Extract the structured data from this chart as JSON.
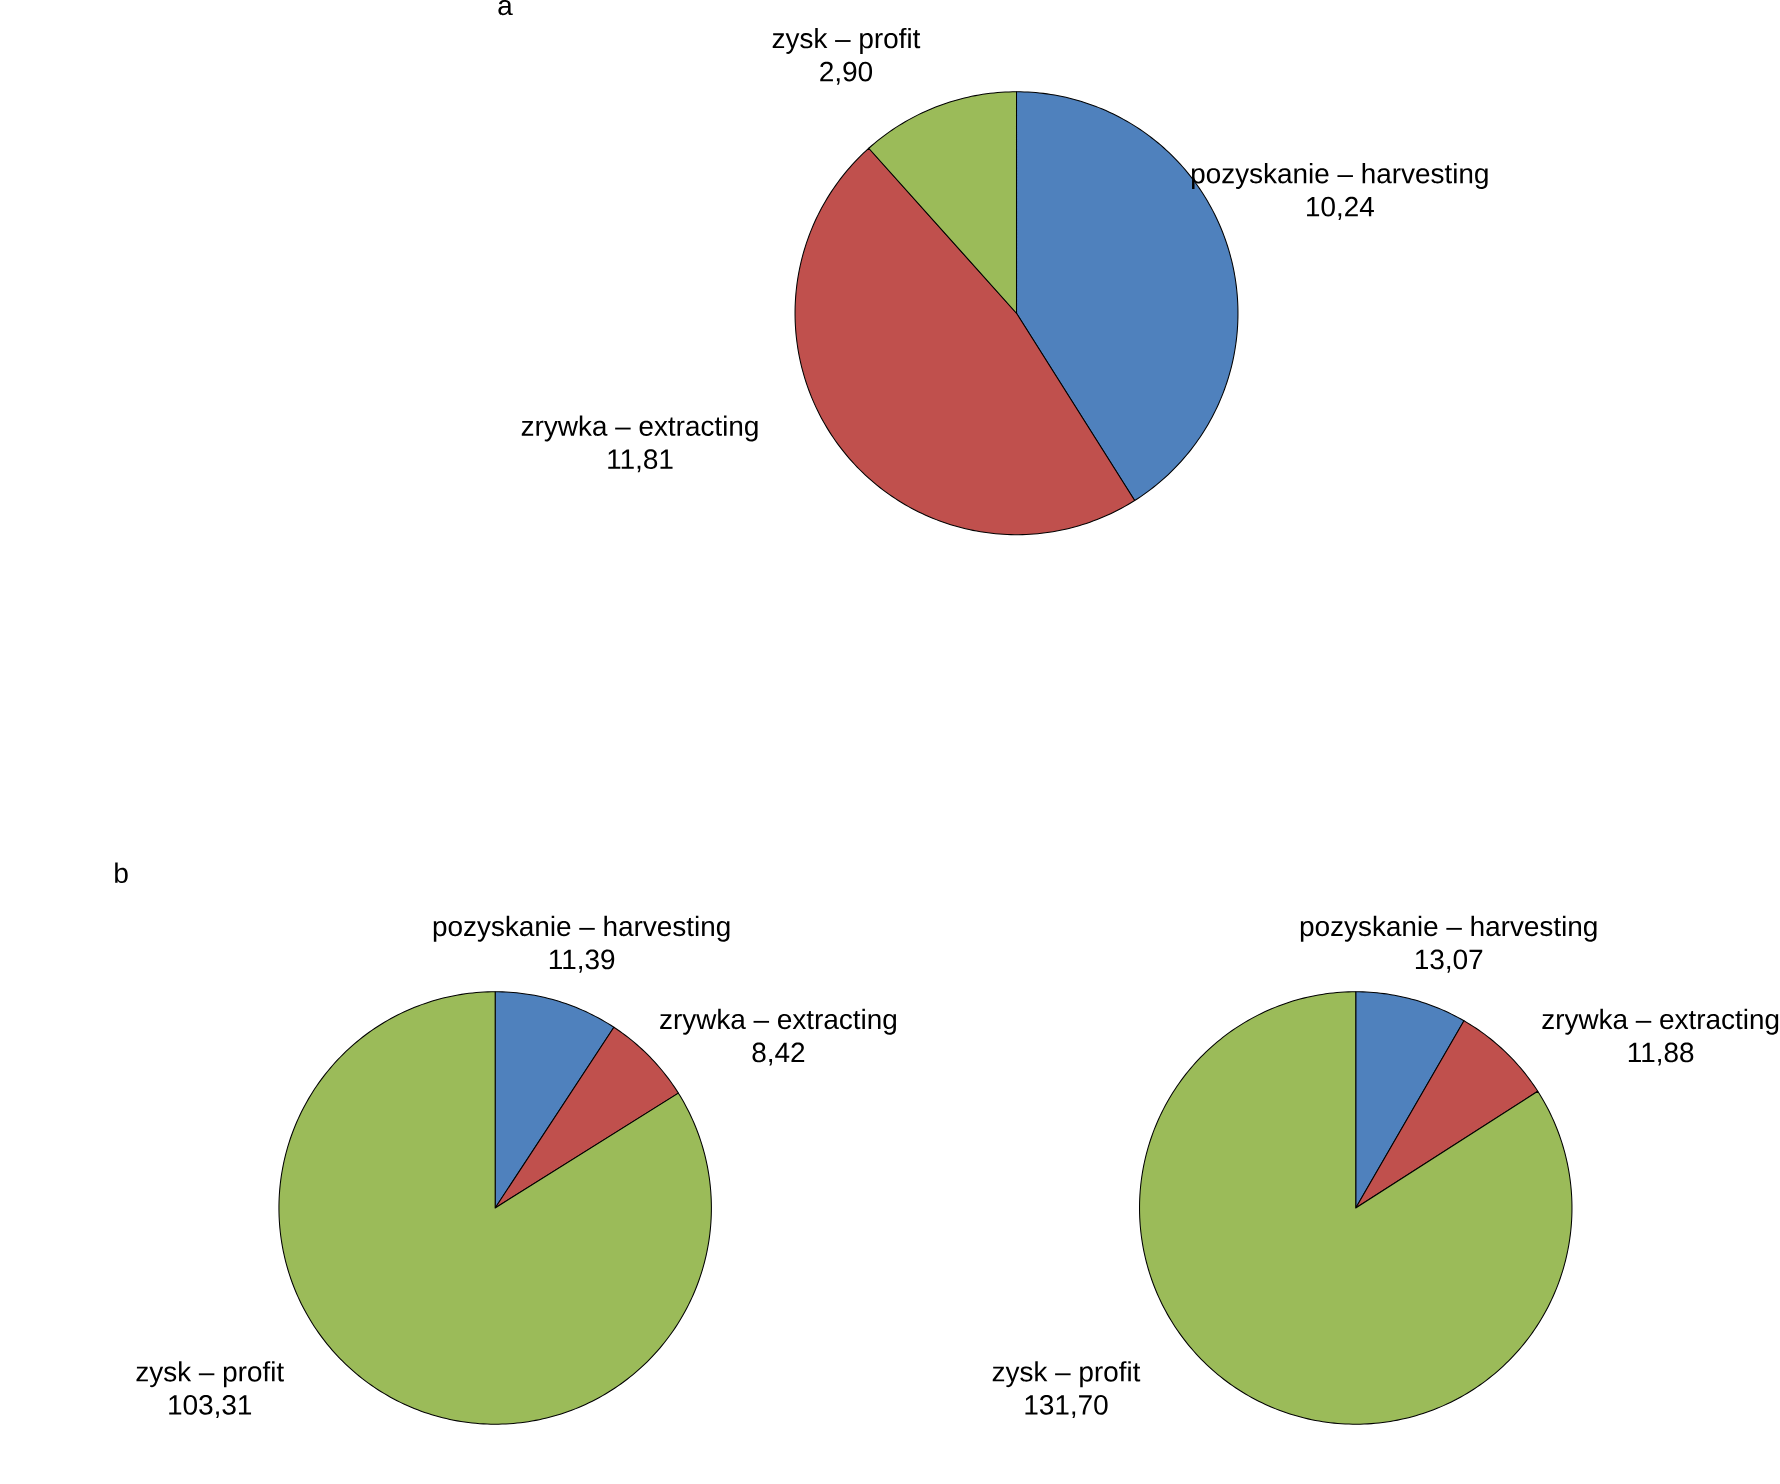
{
  "chart_data": [
    {
      "type": "pie",
      "title": "a",
      "categories": [
        "pozyskanie – harvesting",
        "zrywka – extracting",
        "zysk – profit"
      ],
      "values": [
        10.24,
        11.81,
        2.9
      ],
      "value_labels": [
        "10,24",
        "11,81",
        "2,90"
      ],
      "colors": [
        "#4f81bd",
        "#c0504d",
        "#9bbb59"
      ]
    },
    {
      "type": "pie",
      "title": "b",
      "categories": [
        "pozyskanie – harvesting",
        "zrywka – extracting",
        "zysk – profit"
      ],
      "values": [
        11.39,
        8.42,
        103.31
      ],
      "value_labels": [
        "11,39",
        "8,42",
        "103,31"
      ],
      "colors": [
        "#4f81bd",
        "#c0504d",
        "#9bbb59"
      ]
    },
    {
      "type": "pie",
      "categories": [
        "pozyskanie – harvesting",
        "zrywka – extracting",
        "zysk – profit"
      ],
      "values": [
        13.07,
        11.88,
        131.7
      ],
      "value_labels": [
        "13,07",
        "11,88",
        "131,70"
      ],
      "colors": [
        "#4f81bd",
        "#c0504d",
        "#9bbb59"
      ]
    }
  ]
}
